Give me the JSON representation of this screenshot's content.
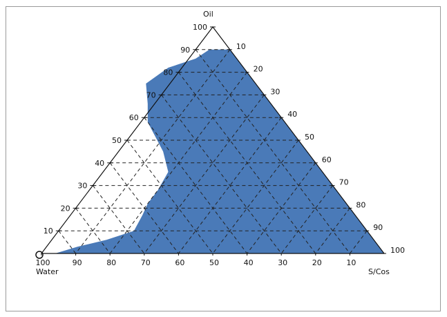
{
  "chart_data": {
    "type": "area",
    "diagram": "ternary phase diagram",
    "vertices": {
      "top": "Oil",
      "bottom_left": "Water",
      "bottom_right": "S/Cos"
    },
    "left_axis_ticks": [
      "10",
      "20",
      "30",
      "40",
      "50",
      "60",
      "70",
      "80",
      "90",
      "100"
    ],
    "right_axis_ticks": [
      "10",
      "20",
      "30",
      "40",
      "50",
      "60",
      "70",
      "80",
      "90",
      "100"
    ],
    "bottom_axis_ticks": [
      "100",
      "90",
      "80",
      "70",
      "60",
      "50",
      "40",
      "30",
      "20",
      "10"
    ],
    "grid": "dashed",
    "region_color": "#4a7ab8",
    "region_boundary": [
      {
        "water": 96,
        "oil": 0
      },
      {
        "water": 88,
        "oil": 3
      },
      {
        "water": 78,
        "oil": 6
      },
      {
        "water": 68,
        "oil": 10
      },
      {
        "water": 62,
        "oil": 17
      },
      {
        "water": 58,
        "oil": 22
      },
      {
        "water": 52,
        "oil": 28
      },
      {
        "water": 45,
        "oil": 36
      },
      {
        "water": 42,
        "oil": 45
      },
      {
        "water": 40,
        "oil": 58
      },
      {
        "water": 36,
        "oil": 66
      },
      {
        "water": 32,
        "oil": 75
      },
      {
        "water": 22,
        "oil": 82
      },
      {
        "water": 12,
        "oil": 86
      },
      {
        "water": 6,
        "oil": 90
      }
    ]
  }
}
